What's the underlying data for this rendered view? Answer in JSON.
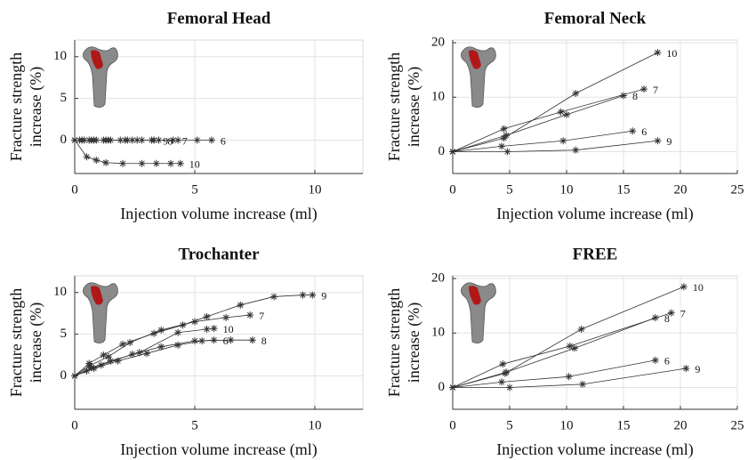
{
  "chart_data": [
    {
      "type": "line",
      "title": "Femoral Head",
      "xlabel": "Injection volume increase (ml)",
      "ylabel": [
        "Fracture strength",
        "increase (%)"
      ],
      "xlim": [
        0,
        12
      ],
      "xticks": [
        0,
        5,
        10
      ],
      "ylim": [
        -4,
        12
      ],
      "yticks": [
        0,
        5,
        10
      ],
      "grid": true,
      "series": [
        {
          "name": "10",
          "color": "#333333",
          "x": [
            0,
            0.5,
            0.9,
            1.3,
            2,
            2.8,
            3.4,
            4,
            4.4
          ],
          "values": [
            0,
            -2,
            -2.4,
            -2.7,
            -2.8,
            -2.8,
            -2.8,
            -2.8,
            -2.8
          ]
        },
        {
          "name": "6",
          "color": "#333333",
          "x": [
            0,
            0.6,
            1.3,
            2.2,
            3.2,
            4.3,
            5.1,
            5.7
          ],
          "values": [
            0,
            0,
            0,
            0,
            0,
            0,
            0,
            0
          ]
        },
        {
          "name": "7",
          "color": "#333333",
          "x": [
            0,
            0.4,
            0.9,
            1.5,
            2.4,
            3.3,
            4.1
          ],
          "values": [
            0,
            0,
            0,
            0,
            0,
            0,
            0
          ]
        },
        {
          "name": "8",
          "color": "#333333",
          "x": [
            0,
            0.3,
            0.8,
            1.4,
            2.1,
            2.8,
            3.5
          ],
          "values": [
            0,
            0,
            0,
            0,
            0,
            0,
            0
          ]
        },
        {
          "name": "9",
          "color": "#333333",
          "x": [
            0,
            0.2,
            0.7,
            1.2,
            1.9,
            2.6,
            3.3
          ],
          "values": [
            0,
            0,
            0,
            0,
            0,
            0,
            0
          ]
        }
      ]
    },
    {
      "type": "line",
      "title": "Femoral Neck",
      "xlabel": "Injection volume increase (ml)",
      "ylabel": [
        "Fracture strength",
        "increase (%)"
      ],
      "xlim": [
        0,
        25
      ],
      "xticks": [
        0,
        5,
        10,
        15,
        20,
        25
      ],
      "ylim": [
        -4,
        20.5
      ],
      "yticks": [
        0,
        10,
        20
      ],
      "grid": true,
      "series": [
        {
          "name": "10",
          "color": "#333333",
          "x": [
            0,
            4.5,
            10.8,
            18
          ],
          "values": [
            0,
            2.5,
            10.7,
            18.2
          ]
        },
        {
          "name": "7",
          "color": "#333333",
          "x": [
            0,
            4.5,
            9.5,
            16.8
          ],
          "values": [
            0,
            4.2,
            7.3,
            11.5
          ]
        },
        {
          "name": "8",
          "color": "#333333",
          "x": [
            0,
            4.7,
            10,
            15
          ],
          "values": [
            0,
            3,
            6.8,
            10.3
          ]
        },
        {
          "name": "6",
          "color": "#333333",
          "x": [
            0,
            4.3,
            9.7,
            15.8
          ],
          "values": [
            0,
            1,
            2,
            3.8
          ]
        },
        {
          "name": "9",
          "color": "#333333",
          "x": [
            0,
            4.8,
            10.8,
            18
          ],
          "values": [
            0,
            0,
            0.3,
            2
          ]
        }
      ]
    },
    {
      "type": "line",
      "title": "Trochanter",
      "xlabel": "Injection volume increase (ml)",
      "ylabel": [
        "Fracture strength",
        "increase (%)"
      ],
      "xlim": [
        0,
        12
      ],
      "xticks": [
        0,
        5,
        10
      ],
      "ylim": [
        -4,
        12
      ],
      "yticks": [
        0,
        5,
        10
      ],
      "grid": true,
      "series": [
        {
          "name": "9",
          "color": "#333333",
          "x": [
            0,
            0.6,
            1.2,
            2,
            3.3,
            4.5,
            5.5,
            6.9,
            8.3,
            9.5,
            9.9
          ],
          "values": [
            0,
            1.5,
            2.5,
            3.8,
            5.1,
            6.1,
            7.1,
            8.5,
            9.5,
            9.7,
            9.7
          ]
        },
        {
          "name": "7",
          "color": "#333333",
          "x": [
            0,
            0.6,
            1.4,
            2.3,
            3.6,
            5,
            6.3,
            7.3
          ],
          "values": [
            0,
            1.2,
            2.3,
            4,
            5.5,
            6.5,
            7,
            7.3
          ]
        },
        {
          "name": "10",
          "color": "#333333",
          "x": [
            0,
            0.7,
            1.5,
            2.7,
            4.3,
            5.5,
            5.8
          ],
          "values": [
            0,
            1,
            1.8,
            2.8,
            5.2,
            5.6,
            5.7
          ]
        },
        {
          "name": "6",
          "color": "#333333",
          "x": [
            0,
            0.8,
            1.8,
            3,
            4.3,
            5.3,
            5.8
          ],
          "values": [
            0,
            0.9,
            1.8,
            2.7,
            3.7,
            4.2,
            4.3
          ]
        },
        {
          "name": "8",
          "color": "#333333",
          "x": [
            0,
            0.5,
            1.1,
            2.4,
            3.6,
            5,
            6.5,
            7.4
          ],
          "values": [
            0,
            0.6,
            1.3,
            2.6,
            3.5,
            4.2,
            4.3,
            4.3
          ]
        }
      ]
    },
    {
      "type": "line",
      "title": "FREE",
      "xlabel": "Injection volume increase (ml)",
      "ylabel": [
        "Fracture strength",
        "increase (%)"
      ],
      "xlim": [
        0,
        25
      ],
      "xticks": [
        0,
        5,
        10,
        15,
        20,
        25
      ],
      "ylim": [
        -4,
        20.5
      ],
      "yticks": [
        0,
        10,
        20
      ],
      "grid": true,
      "series": [
        {
          "name": "10",
          "color": "#333333",
          "x": [
            0,
            4.6,
            11.3,
            20.3
          ],
          "values": [
            0,
            2.6,
            10.7,
            18.5
          ]
        },
        {
          "name": "7",
          "color": "#333333",
          "x": [
            0,
            4.4,
            10.3,
            19.2
          ],
          "values": [
            0,
            4.3,
            7.6,
            13.7
          ]
        },
        {
          "name": "8",
          "color": "#333333",
          "x": [
            0,
            4.7,
            10.7,
            17.8
          ],
          "values": [
            0,
            2.8,
            7.2,
            12.8
          ]
        },
        {
          "name": "6",
          "color": "#333333",
          "x": [
            0,
            4.3,
            10.2,
            17.8
          ],
          "values": [
            0,
            1,
            2,
            5
          ]
        },
        {
          "name": "9",
          "color": "#333333",
          "x": [
            0,
            5,
            11.4,
            20.5
          ],
          "values": [
            0,
            0,
            0.6,
            3.5
          ]
        }
      ]
    }
  ]
}
